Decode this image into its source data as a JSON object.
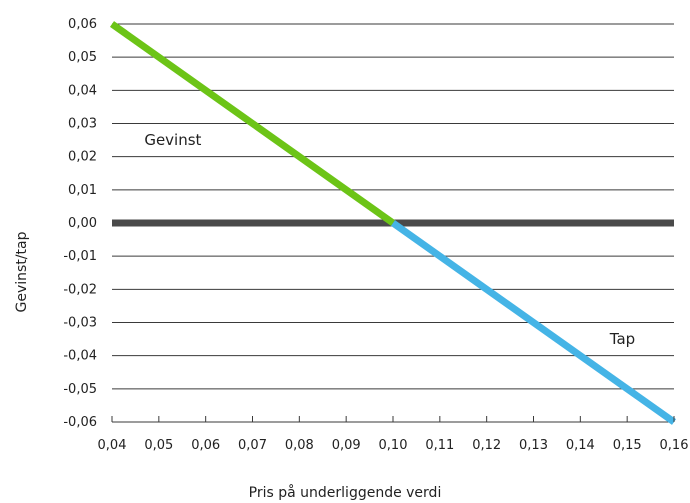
{
  "chart_data": {
    "type": "line",
    "title": "",
    "xlabel": "Pris på underliggende verdi",
    "ylabel": "Gevinst/tap",
    "xlim": [
      0.04,
      0.16
    ],
    "ylim": [
      -0.06,
      0.06
    ],
    "x_ticks": [
      0.04,
      0.05,
      0.06,
      0.07,
      0.08,
      0.09,
      0.1,
      0.11,
      0.12,
      0.13,
      0.14,
      0.15,
      0.16
    ],
    "x_tick_labels": [
      "0,04",
      "0,05",
      "0,06",
      "0,07",
      "0,08",
      "0,09",
      "0,10",
      "0,11",
      "0,12",
      "0,13",
      "0,14",
      "0,15",
      "0,16"
    ],
    "y_ticks": [
      0.06,
      0.05,
      0.04,
      0.03,
      0.02,
      0.01,
      0.0,
      -0.01,
      -0.02,
      -0.03,
      -0.04,
      -0.05,
      -0.06
    ],
    "y_tick_labels": [
      "0,06",
      "0,05",
      "0,04",
      "0,03",
      "0,02",
      "0,01",
      "0,00",
      "-0,01",
      "-0,02",
      "-0,03",
      "-0,04",
      "-0,05",
      "-0,06"
    ],
    "grid": true,
    "series": [
      {
        "x": [
          0.04,
          0.1
        ],
        "y": [
          0.06,
          0.0
        ],
        "color": "#6CC417"
      },
      {
        "x": [
          0.1,
          0.16
        ],
        "y": [
          0.0,
          -0.06
        ],
        "color": "#45B4E6"
      }
    ],
    "zero_line_color": "#4A4A4A",
    "annotations": [
      {
        "text": "Gevinst",
        "x": 0.053,
        "y": 0.025
      },
      {
        "text": "Tap",
        "x": 0.149,
        "y": -0.035
      }
    ]
  }
}
